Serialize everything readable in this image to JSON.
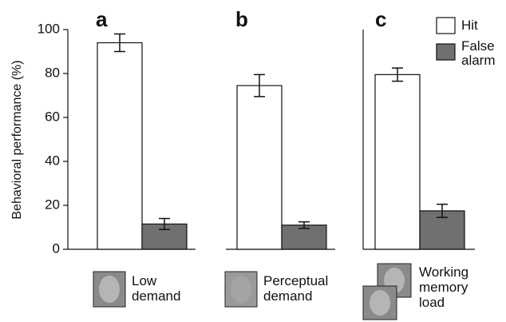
{
  "chart_data": {
    "type": "bar",
    "y_label": "Behavioral performance (%)",
    "panel_labels": [
      "a",
      "b",
      "c"
    ],
    "categories": [
      "Low demand",
      "Perceptual demand",
      "Working memory load"
    ],
    "series": [
      {
        "name": "Hit",
        "color": "#ffffff",
        "values": [
          94,
          74.5,
          79.5
        ],
        "errors": [
          4,
          5,
          3
        ]
      },
      {
        "name": "False alarm",
        "color": "#707070",
        "values": [
          11.5,
          11,
          17.5
        ],
        "errors": [
          2.5,
          1.5,
          3
        ]
      }
    ],
    "ylim": [
      0,
      100
    ],
    "yticks": [
      0,
      20,
      40,
      60,
      80,
      100
    ],
    "legend": "top-right"
  }
}
